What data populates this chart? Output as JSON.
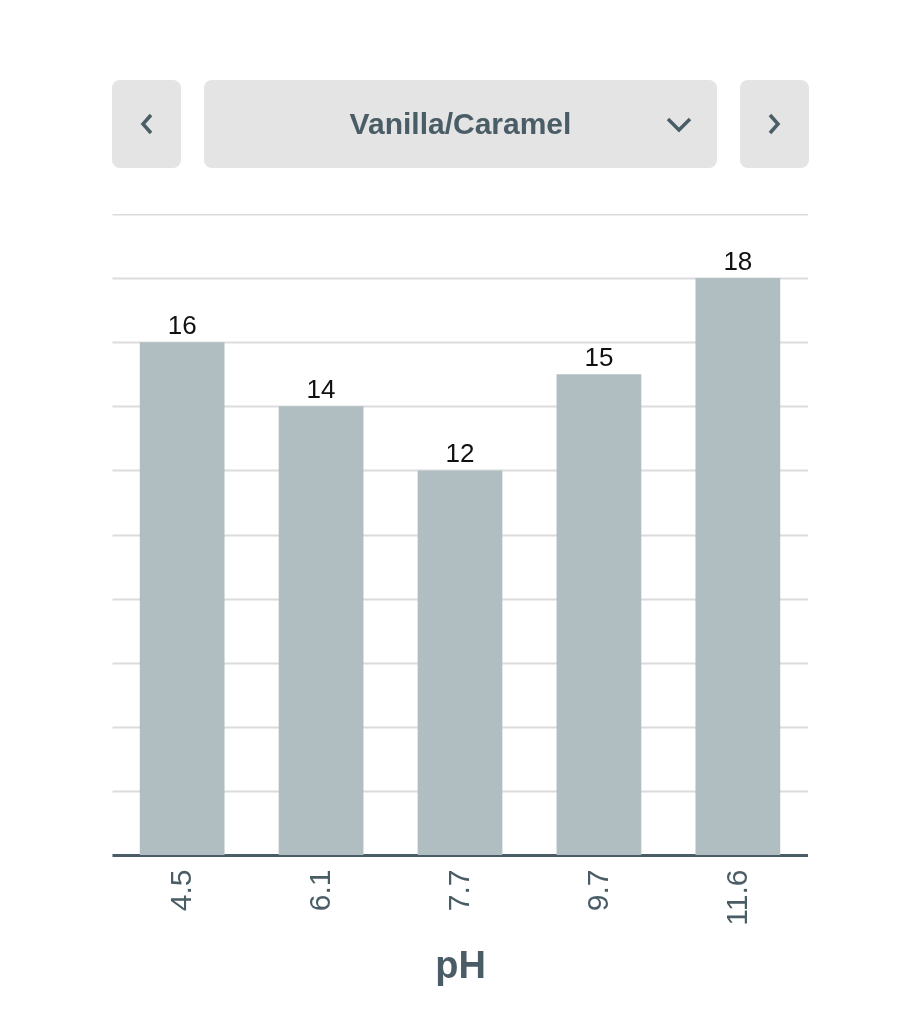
{
  "chart_data": {
    "type": "bar",
    "title": "Vanilla/Caramel",
    "xlabel": "pH",
    "categories": [
      "4.5",
      "6.1",
      "7.7",
      "9.7",
      "11.6"
    ],
    "values": [
      16,
      14,
      12,
      15,
      18
    ],
    "color": "#b0bec1",
    "ylim": [
      0,
      20
    ],
    "yticks": [
      {
        "value": 0,
        "label": null
      },
      {
        "value": 2,
        "label": null
      },
      {
        "value": 4,
        "label": null
      },
      {
        "value": 6,
        "label": null
      },
      {
        "value": 8,
        "label": null
      },
      {
        "value": 10,
        "label": null
      },
      {
        "value": 12,
        "label": null
      },
      {
        "value": 14,
        "label": null
      },
      {
        "value": 16,
        "label": null
      },
      {
        "value": 18,
        "label": null
      },
      {
        "value": 20,
        "label": null
      }
    ],
    "grid": "y",
    "data_labels": true
  }
}
